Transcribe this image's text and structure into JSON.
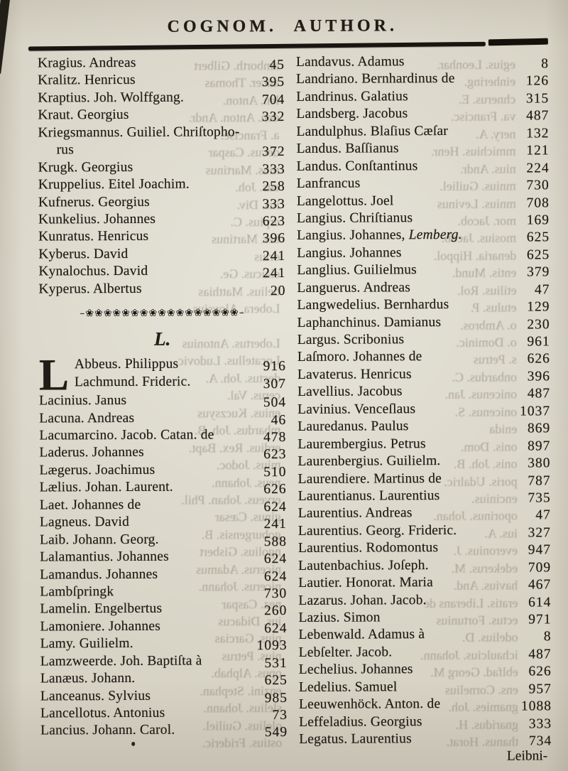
{
  "page": {
    "title": "COGNOM. AUTHOR.",
    "section_heading": "L.",
    "ornament": "–❀❀❀❀❀❀❀❀❀❀❀❀❀❀❀❀❀–",
    "catchword": "Leibni-",
    "colors": {
      "paper": "#d7d3c5",
      "ink": "#211c15",
      "ghost": "#6f6554"
    }
  },
  "left_column": {
    "groups": [
      {
        "type": "entries",
        "items": [
          {
            "n": "Kragius. Andreas",
            "p": "45"
          },
          {
            "n": "Kralitz. Henricus",
            "p": "395"
          },
          {
            "n": "Kraptius. Joh. Wolffgang.",
            "p": "704"
          },
          {
            "n": "Kraut. Georgius",
            "p": "332"
          },
          {
            "n": "Kriegsmannus. Guiliel. Chriſtopho-",
            "p": ""
          },
          {
            "n": "rus",
            "p": "372",
            "indent": true
          },
          {
            "n": "Krugk. Georgius",
            "p": "333"
          },
          {
            "n": "Kruppelius. Eitel Joachim.",
            "p": "258"
          },
          {
            "n": "Kufnerus. Georgius",
            "p": "333"
          },
          {
            "n": "Kunkelius. Johannes",
            "p": "623"
          },
          {
            "n": "Kunratus. Henricus",
            "p": "396"
          },
          {
            "n": "Kyberus. David",
            "p": "241"
          },
          {
            "n": "Kynalochus. David",
            "p": "241"
          },
          {
            "n": "Kyperus. Albertus",
            "p": "20"
          }
        ]
      },
      {
        "type": "ornament"
      },
      {
        "type": "heading"
      },
      {
        "type": "dropcap",
        "cap": "L",
        "items": [
          {
            "n": "Abbeus. Philippus",
            "p": "916"
          },
          {
            "n": "Lachmund. Frideric.",
            "p": "307"
          }
        ]
      },
      {
        "type": "entries",
        "items": [
          {
            "n": "Lacinius. Janus",
            "p": "504"
          },
          {
            "n": "Lacuna. Andreas",
            "p": "46"
          },
          {
            "n": "Lacumarcino. Jacob. Catan. de",
            "p": "478"
          },
          {
            "n": "Laderus. Johannes",
            "p": "623"
          },
          {
            "n": "Lægerus. Joachimus",
            "p": "510"
          },
          {
            "n": "Lælius. Johan. Laurent.",
            "p": "626"
          },
          {
            "n": "Laet. Johannes de",
            "p": "624"
          },
          {
            "n": "Lagneus. David",
            "p": "241"
          },
          {
            "n": "Laib. Johann. Georg.",
            "p": "588"
          },
          {
            "n": "Lalamantius. Johannes",
            "p": "624"
          },
          {
            "n": "Lamandus. Johannes",
            "p": "624"
          },
          {
            "n": "Lambſpringk",
            "p": "730"
          },
          {
            "n": "Lamelin. Engelbertus",
            "p": "260"
          },
          {
            "n": "Lamoniere. Johannes",
            "p": "624"
          },
          {
            "n": "Lamy. Guilielm.",
            "p": "1093"
          },
          {
            "n": "Lamzweerde. Joh. Baptiſta à",
            "p": "531"
          },
          {
            "n": "Lanæus. Johann.",
            "p": "625"
          },
          {
            "n": "Lanceanus. Sylvius",
            "p": "985"
          },
          {
            "n": "Lancellotus. Antonius",
            "p": "73"
          },
          {
            "n": "Lancius. Johann. Carol.",
            "p": "549"
          }
        ]
      }
    ]
  },
  "right_column": {
    "groups": [
      {
        "type": "entries",
        "items": [
          {
            "n": "Landavus. Adamus",
            "p": "8"
          },
          {
            "n": "Landriano. Bernhardinus de",
            "p": "126"
          },
          {
            "n": "Landrinus. Galatius",
            "p": "315"
          },
          {
            "n": "Landsberg. Jacobus",
            "p": "487"
          },
          {
            "n": "Landulphus. Blaſius Cæſar",
            "p": "132"
          },
          {
            "n": "Landus. Baſſianus",
            "p": "121"
          },
          {
            "n": "Landus. Conſtantinus",
            "p": "224"
          },
          {
            "n": "Lanfrancus",
            "p": "730"
          },
          {
            "n": "Langelottus. Joel",
            "p": "708"
          },
          {
            "n": "Langius. Chriſtianus",
            "p": "169"
          },
          {
            "n": "Langius. Johannes, ",
            "i": "Lemberg.",
            "p": "625"
          },
          {
            "n": "Langius. Johannes",
            "p": "625"
          },
          {
            "n": "Langlius. Guilielmus",
            "p": "379"
          },
          {
            "n": "Languerus. Andreas",
            "p": "47"
          },
          {
            "n": "Langwedelius. Bernhardus",
            "p": "129"
          },
          {
            "n": "Laphanchinus. Damianus",
            "p": "230"
          },
          {
            "n": "Largus. Scribonius",
            "p": "961"
          },
          {
            "n": "Laſmoro. Johannes de",
            "p": "626"
          },
          {
            "n": "Lavaterus. Henricus",
            "p": "396"
          },
          {
            "n": "Lavellius. Jacobus",
            "p": "487"
          },
          {
            "n": "Lavinius. Venceſlaus",
            "p": "1037"
          },
          {
            "n": "Lauredanus. Paulus",
            "p": "869"
          },
          {
            "n": "Laurembergius. Petrus",
            "p": "897"
          },
          {
            "n": "Laurenbergius. Guilielm.",
            "p": "380"
          },
          {
            "n": "Laurendiere. Martinus de",
            "p": "787"
          },
          {
            "n": "Laurentianus. Laurentius",
            "p": "735"
          },
          {
            "n": "Laurentius. Andreas",
            "p": "47"
          },
          {
            "n": "Laurentius. Georg. Frideric.",
            "p": "327"
          },
          {
            "n": "Laurentius. Rodomontus",
            "p": "947"
          },
          {
            "n": "Lautenbachius. Joſeph.",
            "p": "709"
          },
          {
            "n": "Lautier. Honorat. Maria",
            "p": "467"
          },
          {
            "n": "Lazarus. Johan. Jacob.",
            "p": "614"
          },
          {
            "n": "Lazius. Simon",
            "p": "971"
          },
          {
            "n": "Lebenwald. Adamus à",
            "p": "8"
          },
          {
            "n": "Lebſelter. Jacob.",
            "p": "487"
          },
          {
            "n": "Lechelius. Johannes",
            "p": "626"
          },
          {
            "n": "Ledelius. Samuel",
            "p": "957"
          },
          {
            "n": "Leeuwenhöck. Anton. de",
            "p": "1088"
          },
          {
            "n": "Leffeladius. Georgius",
            "p": "333"
          },
          {
            "n": "Legatus. Laurentius",
            "p": "734"
          }
        ]
      }
    ]
  },
  "ghost": {
    "left": [
      "amborth. Gilbert",
      "ancer. Thomas",
      "len. Anton.",
      "den. Anton. Andr.",
      "a. Francisc.",
      "decus. Caspar",
      "nius. Martinus",
      "eus. Joh.",
      "ius. Div.",
      "erpius. C.",
      "ber. Martinus",
      "orius",
      "elaicus. Ge.",
      "belius. Matthias",
      "Lobera. Aloysius",
      "",
      "Lobertus. Antonius",
      "Locatellus. Ludovic.",
      "dectus. Joh. A.",
      "cerus. Val.",
      "enius. Kuczsyus",
      "mbardus. Joh. B.",
      "erdius. Rex. Bapt.",
      "mius. Jodoc.",
      "neus. Johann.",
      "erveus. Johan. Phil.",
      "ginus. Cæsar",
      "goburgensis. B.",
      "ngolius. Gisbert",
      "nicerus. Adamus",
      "nicerus. Johann.",
      "nez. Caspar",
      "ius. Didacus",
      "pius. Garcias",
      "nius. Petrus",
      "opus. Alphab.",
      "enzini. Stephan.",
      "slelius. Johann.",
      "olelius. Guiliel.",
      "ostius. Frideric."
    ],
    "right": [
      "egius. Leonhar.",
      "einhering.",
      "chnerus. E.",
      "va. Francisc.",
      "nery. A.",
      "mmichius. Henr.",
      "nius. Andr.",
      "mnius. Guiliel.",
      "mnius. Levinus",
      "mor. Jacob.",
      "mosius. Jacob.",
      "denaria. Hippol.",
      "entis. Mund.",
      "etilius. Rol.",
      "etulus. P.",
      "o. Ambros.",
      "o. Dominic.",
      "s. Petrus",
      "onbardus. C.",
      "onicenus. Jan.",
      "onicenus. S.",
      "enida",
      "onis. Dom.",
      "onis. Joh. B.",
      "poris. Udalric.",
      "encinius.",
      "oporinus. Johan.",
      "ius. A.",
      "everonius. J.",
      "edekerus. M.",
      "havius. And.",
      "eratis. Liberans de",
      "ectus. Fortunius",
      "odelius. D.",
      "ichaulcius. Johann.",
      "eblfad. Georg M.",
      "ens. Cornelius",
      "gnamies. Joh.",
      "gnaridus. H.",
      "thanus. Horat."
    ]
  }
}
